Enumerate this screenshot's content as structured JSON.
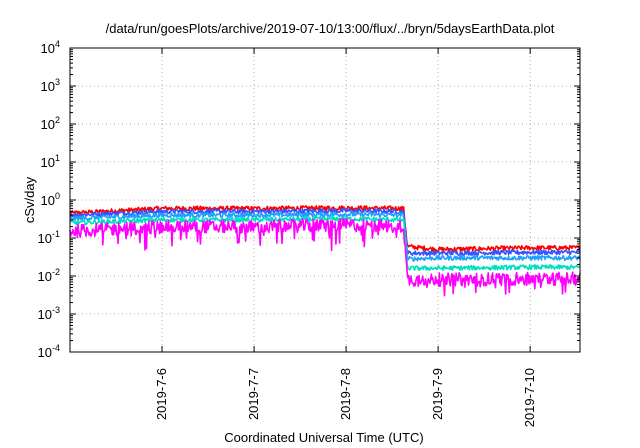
{
  "chart_data": {
    "type": "line",
    "title": "/data/run/goesPlots/archive/2019-07-10/13:00/flux/../bryn/5daysEarthData.plot",
    "xlabel": "Coordinated Universal Time (UTC)",
    "ylabel": "cSv/day",
    "yscale": "log",
    "ylim": [
      0.0001,
      10000
    ],
    "xlim": [
      "2019-07-05 00:00",
      "2019-07-10 13:00"
    ],
    "y_ticks": [
      {
        "base": "10",
        "exp": "-4",
        "value": 0.0001
      },
      {
        "base": "10",
        "exp": "-3",
        "value": 0.001
      },
      {
        "base": "10",
        "exp": "-2",
        "value": 0.01
      },
      {
        "base": "10",
        "exp": "-1",
        "value": 0.1
      },
      {
        "base": "10",
        "exp": "0",
        "value": 1
      },
      {
        "base": "10",
        "exp": "1",
        "value": 10
      },
      {
        "base": "10",
        "exp": "2",
        "value": 100
      },
      {
        "base": "10",
        "exp": "3",
        "value": 1000
      },
      {
        "base": "10",
        "exp": "4",
        "value": 10000
      }
    ],
    "x_ticks": [
      "2019-7-6",
      "2019-7-7",
      "2019-7-8",
      "2019-7-9",
      "2019-7-10"
    ],
    "grid": true,
    "legend": "none",
    "series": [
      {
        "color": "#ff0000",
        "x": [
          "2019-07-05 00:00",
          "2019-07-06 00:00",
          "2019-07-07 00:00",
          "2019-07-08 00:00",
          "2019-07-08 15:00",
          "2019-07-08 16:00",
          "2019-07-09 00:00",
          "2019-07-10 00:00",
          "2019-07-10 13:00"
        ],
        "values": [
          0.45,
          0.6,
          0.6,
          0.62,
          0.6,
          0.06,
          0.05,
          0.055,
          0.055
        ]
      },
      {
        "color": "#3355ff",
        "x": [
          "2019-07-05 00:00",
          "2019-07-06 00:00",
          "2019-07-07 00:00",
          "2019-07-08 00:00",
          "2019-07-08 15:00",
          "2019-07-08 16:00",
          "2019-07-09 00:00",
          "2019-07-10 00:00",
          "2019-07-10 13:00"
        ],
        "values": [
          0.4,
          0.5,
          0.5,
          0.52,
          0.5,
          0.04,
          0.04,
          0.042,
          0.042
        ]
      },
      {
        "color": "#20a0ff",
        "x": [
          "2019-07-05 00:00",
          "2019-07-06 00:00",
          "2019-07-07 00:00",
          "2019-07-08 00:00",
          "2019-07-08 15:00",
          "2019-07-08 16:00",
          "2019-07-09 00:00",
          "2019-07-10 00:00",
          "2019-07-10 13:00"
        ],
        "values": [
          0.32,
          0.4,
          0.4,
          0.42,
          0.4,
          0.028,
          0.03,
          0.03,
          0.03
        ]
      },
      {
        "color": "#00e0c0",
        "x": [
          "2019-07-05 00:00",
          "2019-07-06 00:00",
          "2019-07-07 00:00",
          "2019-07-08 00:00",
          "2019-07-08 15:00",
          "2019-07-08 16:00",
          "2019-07-09 00:00",
          "2019-07-10 00:00",
          "2019-07-10 13:00"
        ],
        "values": [
          0.25,
          0.3,
          0.3,
          0.32,
          0.3,
          0.016,
          0.016,
          0.017,
          0.017
        ]
      },
      {
        "color": "#ff00ff",
        "x": [
          "2019-07-05 00:00",
          "2019-07-06 00:00",
          "2019-07-07 00:00",
          "2019-07-08 00:00",
          "2019-07-08 15:00",
          "2019-07-08 16:00",
          "2019-07-09 00:00",
          "2019-07-10 00:00",
          "2019-07-10 13:00"
        ],
        "values": [
          0.15,
          0.2,
          0.2,
          0.22,
          0.2,
          0.008,
          0.008,
          0.0085,
          0.0085
        ]
      }
    ]
  }
}
